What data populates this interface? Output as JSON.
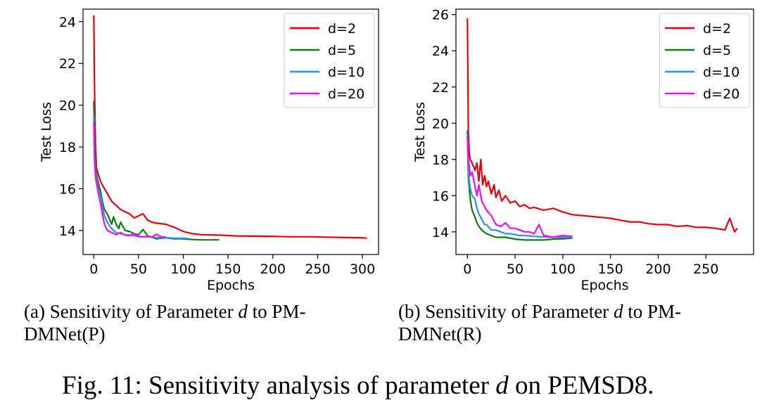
{
  "figure_caption": {
    "prefix": "Fig. 11: Sensitivity analysis of parameter ",
    "var": "d",
    "suffix": " on PEMSD8."
  },
  "subcaptions": [
    {
      "line1_prefix": "(a) Sensitivity of Parameter ",
      "var": "d",
      "line1_suffix": " to PM-",
      "line2": "DMNet(P)"
    },
    {
      "line1_prefix": "(b) Sensitivity of Parameter ",
      "var": "d",
      "line1_suffix": " to PM-",
      "line2": "DMNet(R)"
    }
  ],
  "colors": {
    "d=2": "#e8000b",
    "d=5": "#117a11",
    "d=10": "#2b8ff7",
    "d=20": "#f10df1"
  },
  "chart_data": [
    {
      "type": "line",
      "title": "",
      "xlabel": "Epochs",
      "ylabel": "Test Loss",
      "xlim": [
        -12,
        318
      ],
      "ylim": [
        12.85,
        24.6
      ],
      "xticks": [
        0,
        50,
        100,
        150,
        200,
        250,
        300
      ],
      "yticks": [
        14,
        16,
        18,
        20,
        22,
        24
      ],
      "legend": "top-right",
      "series": [
        {
          "name": "d=2",
          "x": [
            0,
            1,
            2,
            3,
            5,
            8,
            12,
            16,
            20,
            25,
            30,
            35,
            40,
            45,
            50,
            55,
            60,
            65,
            70,
            80,
            90,
            100,
            110,
            120,
            140,
            160,
            180,
            200,
            220,
            240,
            260,
            280,
            300,
            305
          ],
          "y": [
            24.3,
            20.5,
            18.0,
            17.0,
            16.7,
            16.3,
            16.0,
            15.7,
            15.4,
            15.2,
            15.0,
            14.9,
            14.8,
            14.6,
            14.7,
            14.8,
            14.5,
            14.4,
            14.35,
            14.3,
            14.15,
            13.95,
            13.85,
            13.8,
            13.78,
            13.74,
            13.73,
            13.72,
            13.7,
            13.7,
            13.68,
            13.66,
            13.65,
            13.63
          ]
        },
        {
          "name": "d=5",
          "x": [
            0,
            1,
            2,
            3,
            5,
            8,
            10,
            12,
            15,
            18,
            20,
            22,
            25,
            28,
            30,
            35,
            40,
            45,
            50,
            55,
            60,
            70,
            80,
            90,
            100,
            110,
            120,
            130,
            140
          ],
          "y": [
            20.2,
            18.5,
            17.0,
            16.7,
            16.3,
            15.8,
            15.3,
            15.0,
            14.8,
            14.5,
            14.3,
            14.65,
            14.3,
            14.1,
            14.4,
            14.0,
            13.95,
            13.85,
            13.8,
            14.05,
            13.75,
            13.6,
            13.65,
            13.6,
            13.6,
            13.57,
            13.55,
            13.55,
            13.55
          ]
        },
        {
          "name": "d=10",
          "x": [
            0,
            1,
            2,
            3,
            5,
            8,
            10,
            12,
            15,
            18,
            20,
            22,
            25,
            30,
            35,
            40,
            45,
            50,
            55,
            60,
            65,
            70,
            80,
            90,
            100,
            105
          ],
          "y": [
            19.5,
            17.5,
            16.8,
            16.5,
            16.0,
            15.6,
            15.0,
            14.7,
            14.4,
            14.2,
            14.1,
            14.0,
            13.9,
            13.85,
            13.8,
            13.78,
            13.75,
            13.72,
            13.7,
            13.7,
            13.68,
            13.65,
            13.66,
            13.63,
            13.63,
            13.62
          ]
        },
        {
          "name": "d=20",
          "x": [
            0,
            1,
            2,
            3,
            5,
            8,
            10,
            12,
            15,
            20,
            25,
            30,
            35,
            40,
            45,
            50,
            55,
            60,
            65,
            70,
            75,
            80
          ],
          "y": [
            19.2,
            17.3,
            16.5,
            16.3,
            15.8,
            15.2,
            14.7,
            14.3,
            14.0,
            13.9,
            13.8,
            13.9,
            13.78,
            13.75,
            13.85,
            13.7,
            13.7,
            13.72,
            13.68,
            13.82,
            13.7,
            13.7
          ]
        }
      ]
    },
    {
      "type": "line",
      "title": "",
      "xlabel": "Epochs",
      "ylabel": "Test Loss",
      "xlim": [
        -12,
        300
      ],
      "ylim": [
        12.75,
        26.3
      ],
      "xticks": [
        0,
        50,
        100,
        150,
        200,
        250
      ],
      "yticks": [
        14,
        16,
        18,
        20,
        22,
        24,
        26
      ],
      "legend": "top-right",
      "series": [
        {
          "name": "d=2",
          "x": [
            0,
            1,
            2,
            3,
            5,
            8,
            10,
            12,
            14,
            16,
            18,
            20,
            22,
            25,
            28,
            30,
            33,
            36,
            40,
            45,
            50,
            55,
            60,
            65,
            70,
            80,
            90,
            100,
            110,
            120,
            130,
            140,
            150,
            160,
            170,
            180,
            190,
            200,
            210,
            220,
            230,
            240,
            250,
            260,
            270,
            275,
            280,
            283
          ],
          "y": [
            25.8,
            19.5,
            18.3,
            18.0,
            17.8,
            17.4,
            17.8,
            16.8,
            18.0,
            16.6,
            17.1,
            16.5,
            16.8,
            16.1,
            16.6,
            15.9,
            16.3,
            15.7,
            16.0,
            15.6,
            15.7,
            15.4,
            15.5,
            15.3,
            15.35,
            15.2,
            15.3,
            15.1,
            14.95,
            14.9,
            14.85,
            14.8,
            14.75,
            14.65,
            14.55,
            14.55,
            14.45,
            14.4,
            14.4,
            14.3,
            14.35,
            14.25,
            14.25,
            14.2,
            14.1,
            14.75,
            14.0,
            14.2
          ]
        },
        {
          "name": "d=5",
          "x": [
            0,
            1,
            2,
            3,
            5,
            8,
            10,
            12,
            15,
            20,
            25,
            30,
            40,
            50,
            60,
            70,
            80,
            90,
            100,
            110
          ],
          "y": [
            19.6,
            17.0,
            16.4,
            15.8,
            15.2,
            14.8,
            14.5,
            14.3,
            14.1,
            13.9,
            13.8,
            13.7,
            13.7,
            13.6,
            13.55,
            13.55,
            13.55,
            13.6,
            13.62,
            13.65
          ]
        },
        {
          "name": "d=10",
          "x": [
            0,
            1,
            2,
            3,
            5,
            8,
            10,
            12,
            15,
            18,
            20,
            25,
            30,
            35,
            40,
            45,
            50,
            55,
            60,
            65,
            70,
            80,
            90,
            100,
            110
          ],
          "y": [
            19.4,
            17.3,
            16.8,
            16.4,
            16.0,
            15.8,
            15.3,
            15.0,
            14.7,
            14.4,
            14.4,
            14.1,
            14.1,
            14.0,
            13.9,
            13.9,
            13.85,
            13.8,
            13.8,
            13.78,
            13.75,
            13.72,
            13.7,
            13.7,
            13.7
          ]
        },
        {
          "name": "d=20",
          "x": [
            0,
            1,
            2,
            3,
            5,
            8,
            10,
            12,
            15,
            18,
            20,
            25,
            30,
            35,
            40,
            45,
            50,
            55,
            60,
            65,
            70,
            75,
            80,
            90,
            100,
            110
          ],
          "y": [
            19.3,
            18.0,
            17.6,
            17.1,
            17.3,
            16.5,
            16.0,
            16.6,
            15.7,
            15.4,
            15.2,
            14.9,
            14.4,
            14.3,
            14.5,
            14.2,
            14.2,
            14.1,
            14.0,
            14.0,
            13.9,
            14.4,
            13.8,
            13.7,
            13.8,
            13.75
          ]
        }
      ]
    }
  ]
}
